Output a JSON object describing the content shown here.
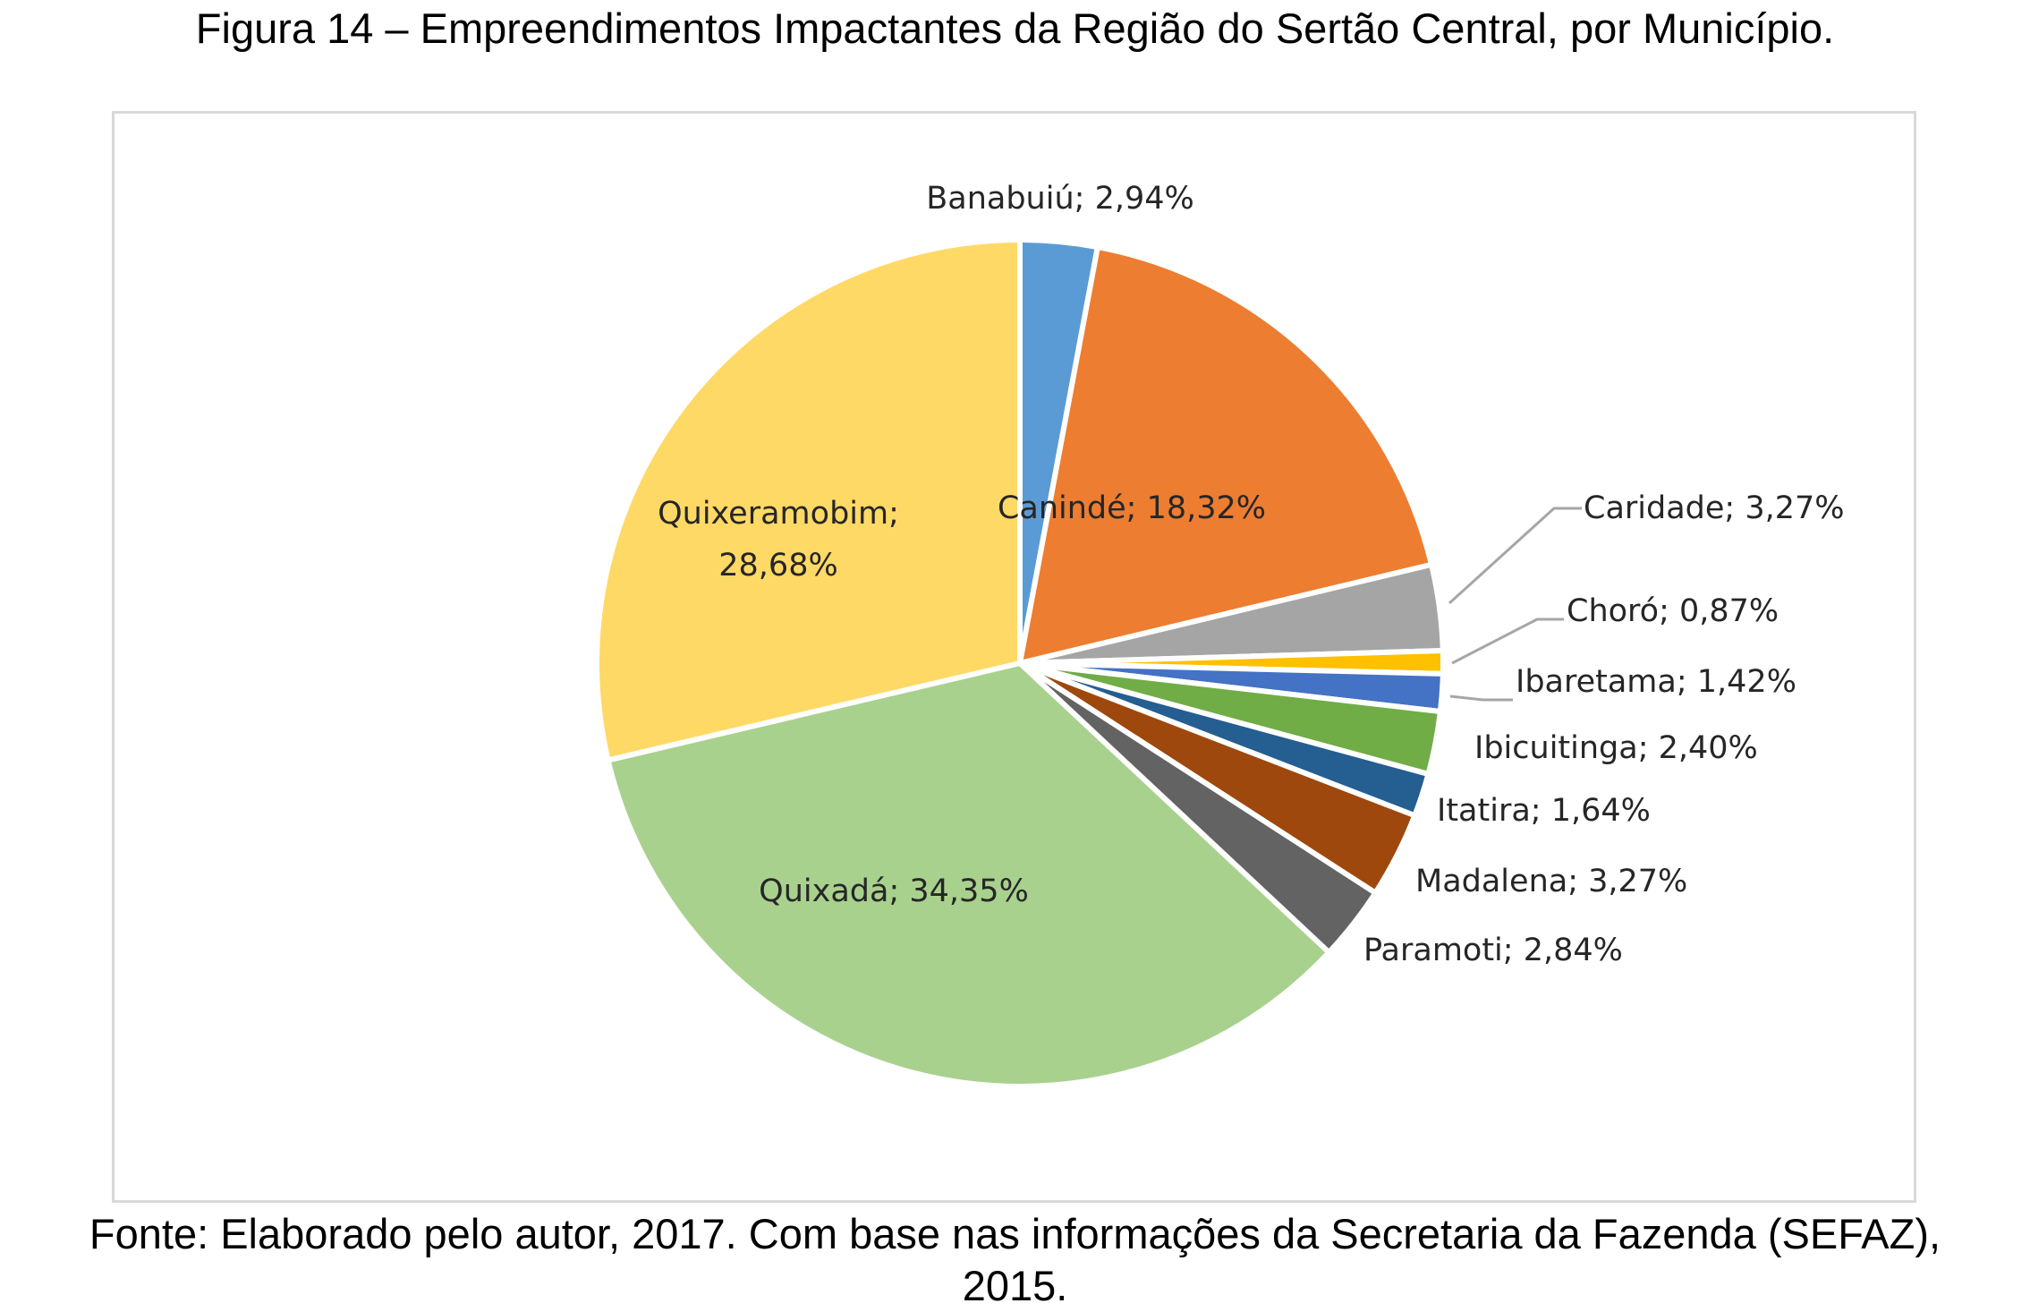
{
  "figure": {
    "title": "Figura 14 – Empreendimentos Impactantes da Região do Sertão Central, por Município.",
    "source_line1": "Fonte: Elaborado pelo autor, 2017. Com base nas informações da Secretaria da Fazenda (SEFAZ),",
    "source_line2": "2015."
  },
  "chart_data": {
    "type": "pie",
    "title": "",
    "start_angle_deg": 0,
    "direction": "clockwise",
    "slices": [
      {
        "label": "Banabuiú",
        "value": 2.94,
        "display": "Banabuiú; 2,94%",
        "color": "#5b9bd5"
      },
      {
        "label": "Canindé",
        "value": 18.32,
        "display": "Canindé; 18,32%",
        "color": "#ed7d31"
      },
      {
        "label": "Caridade",
        "value": 3.27,
        "display": "Caridade; 3,27%",
        "color": "#a5a5a5"
      },
      {
        "label": "Choró",
        "value": 0.87,
        "display": "Choró; 0,87%",
        "color": "#ffc000"
      },
      {
        "label": "Ibaretama",
        "value": 1.42,
        "display": "Ibaretama; 1,42%",
        "color": "#4472c4"
      },
      {
        "label": "Ibicuitinga",
        "value": 2.4,
        "display": "Ibicuitinga; 2,40%",
        "color": "#70ad47"
      },
      {
        "label": "Itatira",
        "value": 1.64,
        "display": "Itatira; 1,64%",
        "color": "#255e91"
      },
      {
        "label": "Madalena",
        "value": 3.27,
        "display": "Madalena; 3,27%",
        "color": "#9e480e"
      },
      {
        "label": "Paramoti",
        "value": 2.84,
        "display": "Paramoti; 2,84%",
        "color": "#636363"
      },
      {
        "label": "Quixadá",
        "value": 34.35,
        "display": "Quixadá; 34,35%",
        "color": "#a9d18e"
      },
      {
        "label": "Quixeramobim",
        "value": 28.68,
        "display": "Quixeramobim;\n28,68%",
        "color": "#ffd966"
      }
    ]
  }
}
